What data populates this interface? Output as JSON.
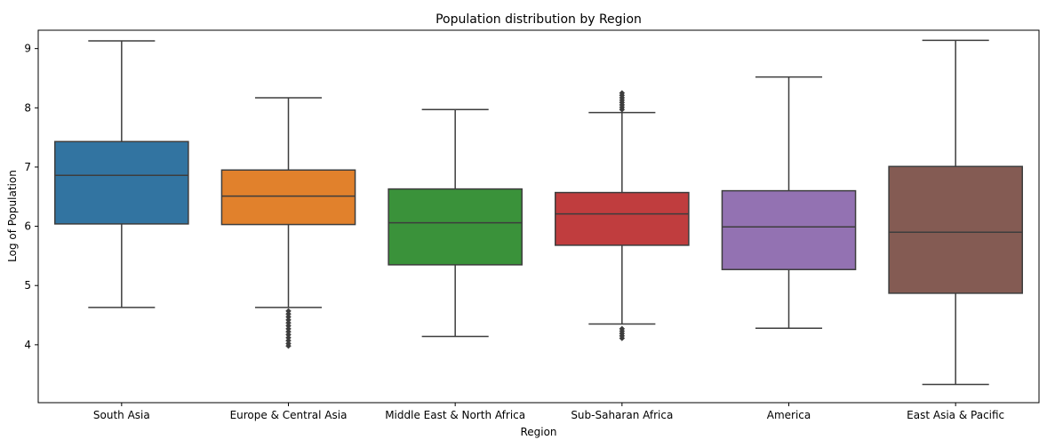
{
  "chart_data": {
    "type": "box",
    "title": "Population distribution by Region",
    "xlabel": "Region",
    "ylabel": "Log of Population",
    "ylim": [
      3.0,
      9.4
    ],
    "yticks": [
      "4",
      "5",
      "6",
      "7",
      "8",
      "9"
    ],
    "ytick_values": [
      4,
      5,
      6,
      7,
      8,
      9
    ],
    "grid": false,
    "categories": [
      "South Asia",
      "Europe & Central Asia",
      "Middle East & North Africa",
      "Sub-Saharan Africa",
      "America",
      "East Asia & Pacific"
    ],
    "boxes": [
      {
        "category": "South Asia",
        "whisker_low": 4.63,
        "q1": 6.04,
        "median": 6.86,
        "q3": 7.43,
        "whisker_high": 9.13,
        "outliers": [],
        "color": "#3274a1"
      },
      {
        "category": "Europe & Central Asia",
        "whisker_low": 4.63,
        "q1": 6.03,
        "median": 6.51,
        "q3": 6.95,
        "whisker_high": 8.17,
        "outliers": [
          4.57,
          4.52,
          4.47,
          4.42,
          4.37,
          4.32,
          4.27,
          4.22,
          4.17,
          4.12,
          4.07,
          4.02,
          3.98
        ],
        "color": "#e1812c"
      },
      {
        "category": "Middle East & North Africa",
        "whisker_low": 4.14,
        "q1": 5.35,
        "median": 6.06,
        "q3": 6.63,
        "whisker_high": 7.97,
        "outliers": [],
        "color": "#3a923a"
      },
      {
        "category": "Sub-Saharan Africa",
        "whisker_low": 4.35,
        "q1": 5.68,
        "median": 6.21,
        "q3": 6.57,
        "whisker_high": 7.92,
        "outliers": [
          8.25,
          8.21,
          8.17,
          8.13,
          8.09,
          8.05,
          8.01,
          7.97,
          4.27,
          4.23,
          4.19,
          4.15,
          4.11
        ],
        "color": "#c03d3e"
      },
      {
        "category": "America",
        "whisker_low": 4.28,
        "q1": 5.27,
        "median": 5.99,
        "q3": 6.6,
        "whisker_high": 8.52,
        "outliers": [],
        "color": "#9372b2"
      },
      {
        "category": "East Asia & Pacific",
        "whisker_low": 3.33,
        "q1": 4.87,
        "median": 5.9,
        "q3": 7.01,
        "whisker_high": 9.14,
        "outliers": [],
        "color": "#845b53"
      }
    ]
  }
}
